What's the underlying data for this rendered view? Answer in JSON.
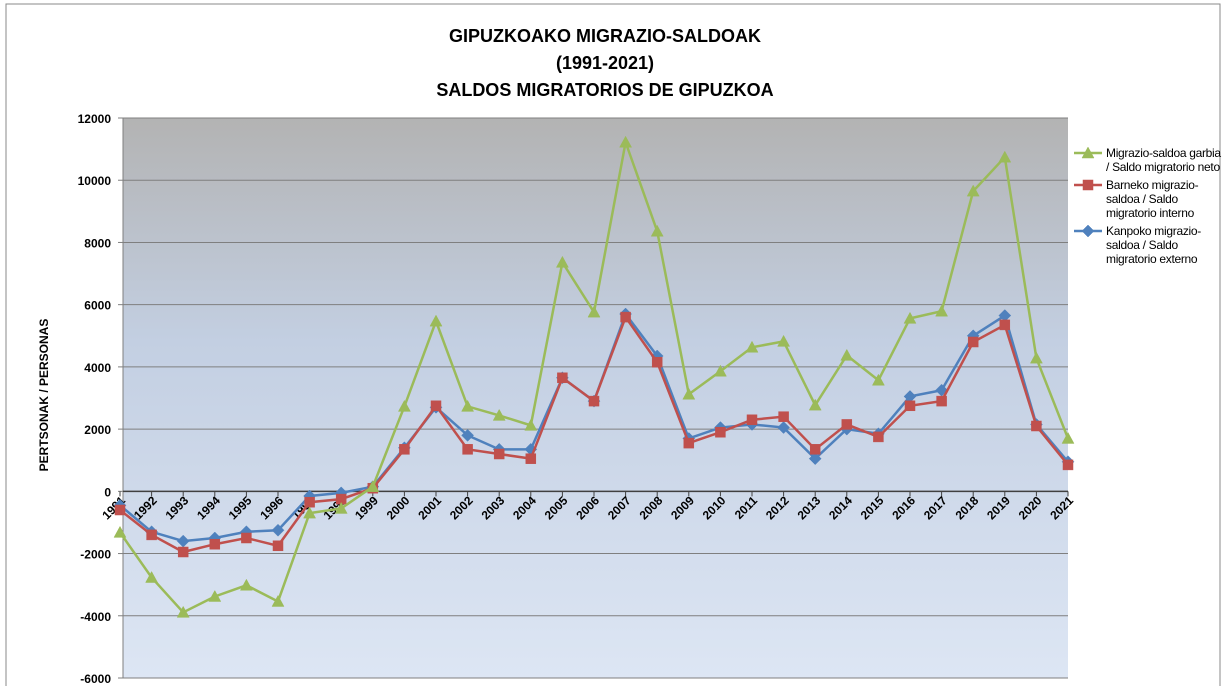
{
  "chart_data": {
    "type": "line",
    "title": [
      "GIPUZKOAKO MIGRAZIO-SALDOAK",
      "(1991-2021)",
      "SALDOS MIGRATORIOS DE GIPUZKOA"
    ],
    "y_label": "PERTSONAK / PERSONAS",
    "categories": [
      "1991",
      "1992",
      "1993",
      "1994",
      "1995",
      "1996",
      "1997",
      "1998",
      "1999",
      "2000",
      "2001",
      "2002",
      "2003",
      "2004",
      "2005",
      "2006",
      "2007",
      "2008",
      "2009",
      "2010",
      "2011",
      "2012",
      "2013",
      "2014",
      "2015",
      "2016",
      "2017",
      "2018",
      "2019",
      "2020",
      "2021"
    ],
    "series": [
      {
        "name": "Migrazio-saldoa garbia / Saldo migratorio neto",
        "color": "#9bbb59",
        "marker": "triangle",
        "values": [
          -1320,
          -2770,
          -3890,
          -3380,
          -3020,
          -3540,
          -700,
          -550,
          150,
          2730,
          5470,
          2730,
          2440,
          2120,
          7360,
          5760,
          11220,
          8360,
          3120,
          3860,
          4630,
          4820,
          2770,
          4370,
          3570,
          5560,
          5790,
          9650,
          10740,
          4280,
          1700
        ]
      },
      {
        "name": "Barneko migrazio-saldoa / Saldo migratorio interno",
        "color": "#c0504d",
        "marker": "square",
        "values": [
          -600,
          -1400,
          -1950,
          -1700,
          -1500,
          -1750,
          -350,
          -250,
          100,
          1350,
          2750,
          1350,
          1200,
          1050,
          3650,
          2900,
          5600,
          4150,
          1550,
          1900,
          2300,
          2400,
          1350,
          2150,
          1750,
          2750,
          2900,
          4800,
          5350,
          2100,
          850
        ]
      },
      {
        "name": "Kanpoko migrazio-saldoa / Saldo migratorio externo",
        "color": "#4f81bd",
        "marker": "diamond",
        "values": [
          -450,
          -1300,
          -1600,
          -1500,
          -1300,
          -1250,
          -150,
          -50,
          150,
          1400,
          2700,
          1800,
          1350,
          1350,
          3650,
          2900,
          5700,
          4350,
          1700,
          2050,
          2150,
          2050,
          1050,
          2000,
          1850,
          3050,
          3250,
          5000,
          5650,
          2150,
          950
        ]
      }
    ],
    "ylim": [
      -6000,
      12000
    ],
    "yticks": [
      -6000,
      -4000,
      -2000,
      0,
      2000,
      4000,
      6000,
      8000,
      10000,
      12000
    ],
    "grid": true,
    "legend": "right"
  }
}
